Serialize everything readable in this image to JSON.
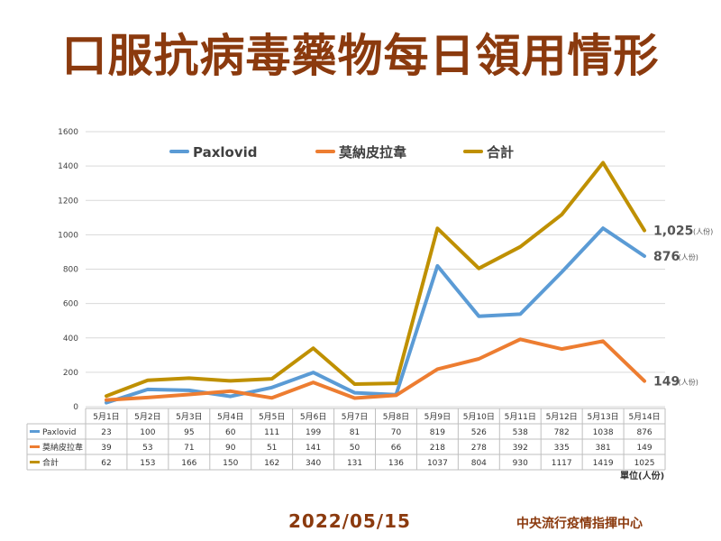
{
  "title": "口服抗病毒藥物每日領用情形",
  "date": "2022/05/15",
  "source": "中央流行疫情指揮中心",
  "unit": "單位(人份)",
  "chart_data": {
    "type": "line",
    "categories": [
      "5月1日",
      "5月2日",
      "5月3日",
      "5月4日",
      "5月5日",
      "5月6日",
      "5月7日",
      "5月8日",
      "5月9日",
      "5月10日",
      "5月11日",
      "5月12日",
      "5月13日",
      "5月14日"
    ],
    "ylim": [
      0,
      1600
    ],
    "yticks": [
      0,
      200,
      400,
      600,
      800,
      1000,
      1200,
      1400,
      1600
    ],
    "grid": true,
    "legend_position": "top",
    "series": [
      {
        "name": "Paxlovid",
        "color": "#5B9BD5",
        "values": [
          23,
          100,
          95,
          60,
          111,
          199,
          81,
          70,
          819,
          526,
          538,
          782,
          1038,
          876
        ],
        "end_label": "876",
        "end_unit": "(人份)"
      },
      {
        "name": "莫納皮拉韋",
        "color": "#ED7D31",
        "values": [
          39,
          53,
          71,
          90,
          51,
          141,
          50,
          66,
          218,
          278,
          392,
          335,
          381,
          149
        ],
        "end_label": "149",
        "end_unit": "(人份)"
      },
      {
        "name": "合計",
        "color": "#BF9000",
        "values": [
          62,
          153,
          166,
          150,
          162,
          340,
          131,
          136,
          1037,
          804,
          930,
          1117,
          1419,
          1025
        ],
        "end_label": "1,025",
        "end_unit": "(人份)"
      }
    ]
  }
}
